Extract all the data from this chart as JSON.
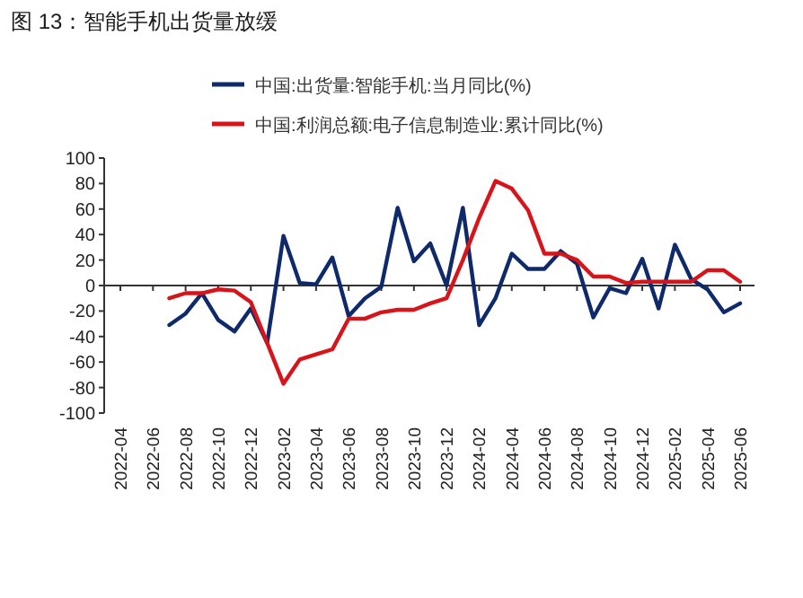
{
  "chart_data": {
    "type": "line",
    "title": "图 13：智能手机出货量放缓",
    "categories": [
      "2022-04",
      null,
      "2022-06",
      null,
      "2022-08",
      null,
      "2022-10",
      null,
      "2022-12",
      null,
      "2023-02",
      null,
      "2023-04",
      null,
      "2023-06",
      null,
      "2023-08",
      null,
      "2023-10",
      null,
      "2023-12",
      null,
      "2024-02",
      null,
      "2024-04",
      null,
      "2024-06",
      null,
      "2024-08",
      null,
      "2024-10",
      null,
      "2024-12",
      null,
      "2025-02",
      null,
      "2025-04",
      null,
      "2025-06"
    ],
    "series": [
      {
        "name": "中国:出货量:智能手机:当月同比(%)",
        "color": "#0e2a6b",
        "values": [
          null,
          null,
          null,
          -31,
          -22,
          -6,
          -27,
          -36,
          -18,
          -45,
          39,
          2,
          1,
          22,
          -24,
          -10,
          -1,
          61,
          19,
          33,
          0,
          61,
          -31,
          -10,
          25,
          13,
          13,
          27,
          17,
          -25,
          -2,
          -6,
          21,
          -18,
          32,
          5,
          -3,
          -21,
          -14
        ]
      },
      {
        "name": "中国:利润总额:电子信息制造业:累计同比(%)",
        "color": "#d7141a",
        "values": [
          null,
          null,
          null,
          -10,
          -6,
          -6,
          -3,
          -4,
          -13,
          -45,
          -77,
          -58,
          -54,
          -50,
          -26,
          -26,
          -21,
          -19,
          -19,
          -14,
          -10,
          20,
          53,
          82,
          76,
          59,
          25,
          25,
          20,
          7,
          7,
          2,
          3,
          3,
          3,
          3,
          12,
          12,
          3
        ]
      }
    ],
    "ylim": [
      -100,
      100
    ],
    "yticks": [
      -100,
      -80,
      -60,
      -40,
      -20,
      0,
      20,
      40,
      60,
      80,
      100
    ],
    "legend": "top"
  }
}
